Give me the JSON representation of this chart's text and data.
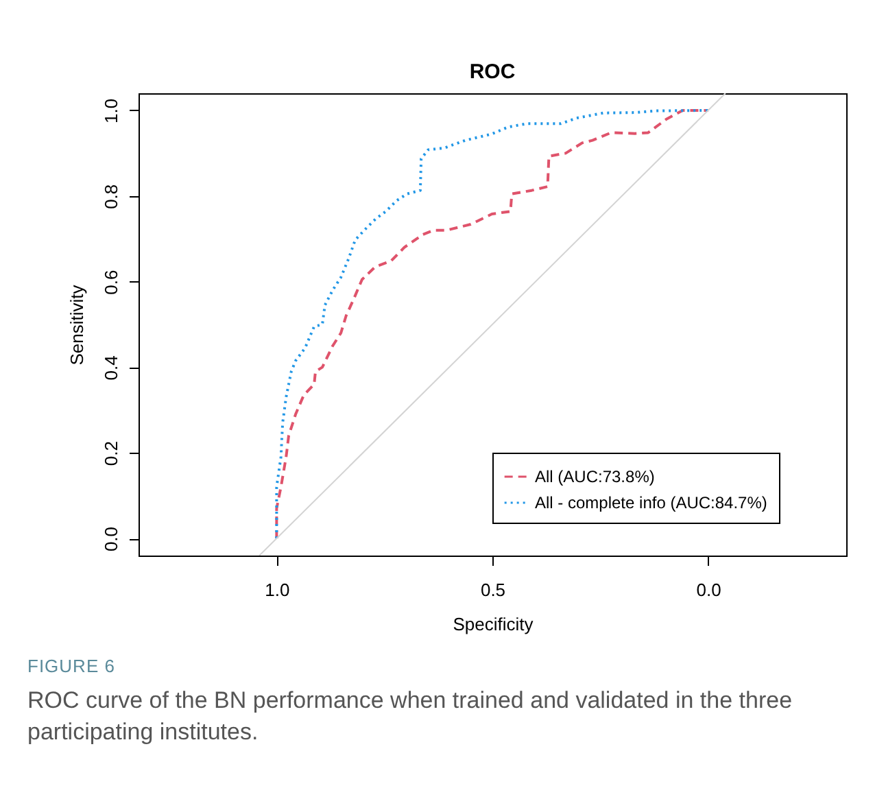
{
  "chart_data": {
    "type": "line",
    "title": "ROC",
    "xlabel": "Specificity",
    "ylabel": "Sensitivity",
    "xlim": [
      1.32,
      -0.32
    ],
    "ylim": [
      -0.04,
      1.04
    ],
    "xticks": [
      {
        "value": 1,
        "label": "1.0"
      },
      {
        "value": 0.5,
        "label": "0.5"
      },
      {
        "value": 0,
        "label": "0.0"
      }
    ],
    "yticks": [
      {
        "value": 0,
        "label": "0.0"
      },
      {
        "value": 0.2,
        "label": "0.2"
      },
      {
        "value": 0.4,
        "label": "0.4"
      },
      {
        "value": 0.6,
        "label": "0.6"
      },
      {
        "value": 0.8,
        "label": "0.8"
      },
      {
        "value": 1,
        "label": "1.0"
      }
    ],
    "grid": false,
    "legend": "bottom right",
    "marker": "none",
    "series": [
      {
        "name": "All (AUC:73.8%)",
        "color": "#df536b",
        "line_style": "dashed",
        "x": [
          1,
          1,
          0.99,
          0.978,
          0.972,
          0.956,
          0.937,
          0.913,
          0.91,
          0.894,
          0.87,
          0.851,
          0.839,
          0.821,
          0.802,
          0.771,
          0.735,
          0.704,
          0.661,
          0.636,
          0.606,
          0.55,
          0.501,
          0.458,
          0.455,
          0.409,
          0.372,
          0.369,
          0.33,
          0.292,
          0.268,
          0.225,
          0.17,
          0.139,
          0.096,
          0.059,
          0
        ],
        "values": [
          0,
          0.07,
          0.12,
          0.19,
          0.24,
          0.29,
          0.335,
          0.36,
          0.39,
          0.4,
          0.45,
          0.48,
          0.52,
          0.56,
          0.605,
          0.635,
          0.648,
          0.68,
          0.71,
          0.72,
          0.72,
          0.734,
          0.758,
          0.764,
          0.805,
          0.813,
          0.822,
          0.893,
          0.9,
          0.924,
          0.93,
          0.948,
          0.946,
          0.948,
          0.98,
          1,
          1
        ]
      },
      {
        "name": "All - complete info (AUC:84.7%)",
        "color": "#2297e6",
        "line_style": "dotted",
        "x": [
          1,
          1,
          0.99,
          0.986,
          0.978,
          0.966,
          0.956,
          0.934,
          0.913,
          0.894,
          0.888,
          0.87,
          0.851,
          0.833,
          0.818,
          0.796,
          0.771,
          0.747,
          0.722,
          0.698,
          0.667,
          0.665,
          0.649,
          0.612,
          0.563,
          0.501,
          0.464,
          0.421,
          0.342,
          0.305,
          0.243,
          0.17,
          0.12,
          0
        ],
        "values": [
          0,
          0.12,
          0.19,
          0.27,
          0.33,
          0.39,
          0.415,
          0.445,
          0.495,
          0.5,
          0.545,
          0.58,
          0.61,
          0.654,
          0.697,
          0.721,
          0.746,
          0.764,
          0.789,
          0.805,
          0.813,
          0.887,
          0.908,
          0.912,
          0.93,
          0.945,
          0.961,
          0.969,
          0.969,
          0.982,
          0.994,
          0.995,
          0.999,
          1
        ]
      },
      {
        "color": "#d3d3d3",
        "line_style": "solid",
        "x": [
          1.04,
          -0.04
        ],
        "values": [
          -0.04,
          1.04
        ]
      }
    ],
    "annotations": [
      "FIGURE 6",
      "ROC curve of the BN performance when trained and validated in the three participating institutes."
    ]
  }
}
